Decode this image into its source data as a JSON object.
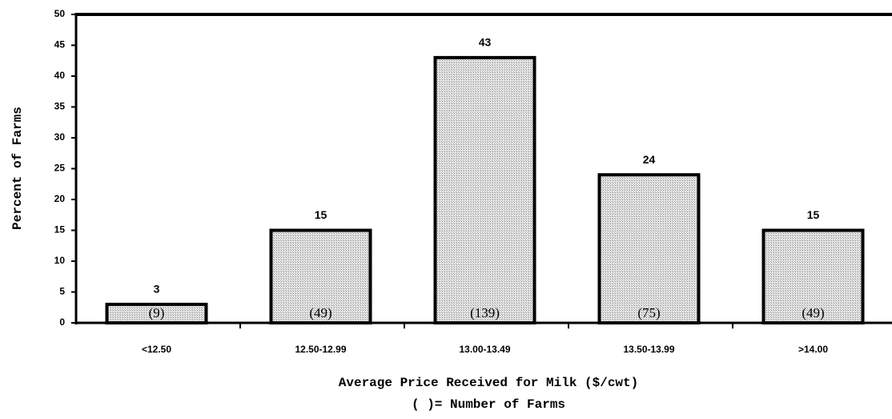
{
  "chart_data": {
    "type": "bar",
    "x_label": "Average Price Received for Milk ($/cwt)",
    "x_note": "( )= Number of Farms",
    "y_label": "Percent of Farms",
    "categories": [
      "<12.50",
      "12.50-12.99",
      "13.00-13.49",
      "13.50-13.99",
      ">14.00"
    ],
    "values": [
      3,
      15,
      43,
      24,
      15
    ],
    "annotations": [
      "(9)",
      "(49)",
      "(139)",
      "(75)",
      "(49)"
    ],
    "color": "#c8c8c8",
    "ylim": [
      0,
      50
    ],
    "yticks": [
      0,
      5,
      10,
      15,
      20,
      25,
      30,
      35,
      40,
      45,
      50
    ]
  }
}
